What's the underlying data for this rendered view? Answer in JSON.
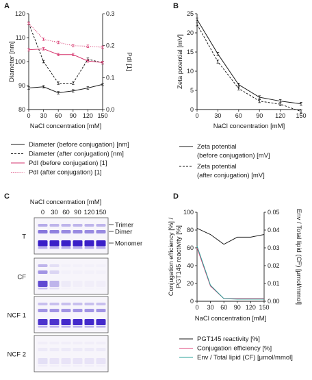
{
  "figure": {
    "panels": {
      "A": {
        "letter": "A"
      },
      "B": {
        "letter": "B"
      },
      "C": {
        "letter": "C"
      },
      "D": {
        "letter": "D"
      }
    }
  },
  "chart_data": [
    {
      "id": "A",
      "type": "line",
      "x": [
        0,
        30,
        60,
        90,
        120,
        150
      ],
      "xlabel": "NaCl concentration [mM]",
      "ylabel_left": "Diameter [nm]",
      "ylabel_right": "PdI [1]",
      "ylim_left": [
        80,
        120
      ],
      "yticks_left": [
        80,
        90,
        100,
        110,
        120
      ],
      "ylim_right": [
        0,
        0.3
      ],
      "yticks_right": [
        "0.0",
        "0.1",
        "0.2",
        "0.3"
      ],
      "xticks": [
        "0",
        "30",
        "60",
        "90",
        "120",
        "150"
      ],
      "series": [
        {
          "name": "Diameter (before conjugation) [nm]",
          "axis": "left",
          "color": "#1a1a1a",
          "dash": "solid",
          "values": [
            89,
            89.5,
            87,
            87.8,
            89,
            90.5
          ]
        },
        {
          "name": "Diameter (after conjugation) [nm]",
          "axis": "left",
          "color": "#1a1a1a",
          "dash": "dashed",
          "values": [
            116,
            100,
            91,
            91,
            101,
            99.5
          ]
        },
        {
          "name": "PdI (before conjugation) [1]",
          "axis": "right",
          "color": "#d6336c",
          "dash": "solid",
          "values": [
            0.187,
            0.19,
            0.172,
            0.172,
            0.152,
            0.147
          ]
        },
        {
          "name": "PdI (after conjugation) [1]",
          "axis": "right",
          "color": "#d6336c",
          "dash": "dotted",
          "values": [
            0.27,
            0.22,
            0.21,
            0.2,
            0.198,
            0.195
          ]
        }
      ]
    },
    {
      "id": "B",
      "type": "line",
      "x": [
        0,
        30,
        60,
        90,
        120,
        150
      ],
      "xlabel": "NaCl concentration [mM]",
      "ylabel": "Zeta potential [mV]",
      "ylim": [
        0,
        25
      ],
      "yticks": [
        0,
        5,
        10,
        15,
        20,
        25
      ],
      "xticks": [
        "0",
        "30",
        "60",
        "90",
        "120",
        "150"
      ],
      "series": [
        {
          "name": "Zeta potential (before conjugation) [mV]",
          "legend_lines": [
            "Zeta potential",
            "(before conjugation) [mV]"
          ],
          "color": "#1a1a1a",
          "dash": "solid",
          "values": [
            23.5,
            14.5,
            6.5,
            3.2,
            2.2,
            1.5
          ]
        },
        {
          "name": "Zeta potential (after conjugation) [mV]",
          "legend_lines": [
            "Zeta potential",
            "(after conjugation) [mV]"
          ],
          "color": "#1a1a1a",
          "dash": "dashed",
          "values": [
            22.2,
            12.5,
            5.5,
            2.2,
            1.4,
            -0.5
          ]
        }
      ]
    },
    {
      "id": "D",
      "type": "line",
      "x": [
        0,
        30,
        60,
        90,
        120,
        150
      ],
      "xlabel": "NaCl concentration [mM]",
      "ylabel_left_lines": [
        "Conjugation efficiency [%] /",
        "PGT145 reactivity [%]"
      ],
      "ylabel_right_lines": [
        "Env / Total lipid (CF) [μmol/mmol]"
      ],
      "ylim_left": [
        0,
        100
      ],
      "yticks_left": [
        0,
        20,
        40,
        60,
        80,
        100
      ],
      "ylim_right": [
        0,
        0.05
      ],
      "yticks_right": [
        "0.00",
        "0.01",
        "0.02",
        "0.03",
        "0.04",
        "0.05"
      ],
      "xticks": [
        "0",
        "30",
        "60",
        "90",
        "120",
        "150"
      ],
      "series": [
        {
          "name": "PGT145 reactivity [%]",
          "axis": "left",
          "color": "#1a1a1a",
          "values": [
            82,
            75,
            64,
            72,
            72,
            75
          ]
        },
        {
          "name": "Conjugation efficiency [%]",
          "axis": "left",
          "color": "#e0457b",
          "values": [
            60,
            17,
            3,
            3,
            3,
            3
          ]
        },
        {
          "name": "Env / Total lipid (CF) [μmol/mmol]",
          "axis": "right",
          "color": "#2aa198",
          "values": [
            0.031,
            0.009,
            0.0015,
            0.0012,
            0.0012,
            0.0012
          ]
        }
      ]
    }
  ],
  "gel": {
    "header": "NaCl concentration [mM]",
    "lanes": [
      "0",
      "30",
      "60",
      "90",
      "120",
      "150"
    ],
    "band_labels": [
      "Trimer",
      "Dimer",
      "Monomer"
    ],
    "rows": [
      {
        "label": "T",
        "intensity": {
          "monomer": [
            1,
            1,
            1,
            1,
            1,
            1
          ],
          "dimer": [
            0.6,
            0.55,
            0.5,
            0.5,
            0.5,
            0.5
          ],
          "trimer": [
            0.35,
            0.3,
            0.3,
            0.3,
            0.3,
            0.3
          ]
        }
      },
      {
        "label": "CF",
        "intensity": {
          "monomer": [
            0.8,
            0.3,
            0.05,
            0.03,
            0.03,
            0.03
          ],
          "dimer": [
            0.45,
            0.15,
            0.02,
            0.02,
            0.02,
            0.02
          ],
          "trimer": [
            0.3,
            0.1,
            0.02,
            0.02,
            0.02,
            0.02
          ]
        }
      },
      {
        "label": "NCF 1",
        "intensity": {
          "monomer": [
            0.9,
            0.9,
            0.95,
            0.95,
            0.95,
            0.95
          ],
          "dimer": [
            0.45,
            0.45,
            0.45,
            0.45,
            0.45,
            0.45
          ],
          "trimer": [
            0.25,
            0.25,
            0.25,
            0.25,
            0.25,
            0.25
          ]
        }
      },
      {
        "label": "NCF 2",
        "intensity": {
          "monomer": [
            0.1,
            0.08,
            0.08,
            0.08,
            0.08,
            0.08
          ],
          "dimer": [
            0.05,
            0.05,
            0.05,
            0.05,
            0.05,
            0.05
          ],
          "trimer": [
            0.03,
            0.03,
            0.03,
            0.03,
            0.03,
            0.03
          ]
        }
      }
    ]
  }
}
